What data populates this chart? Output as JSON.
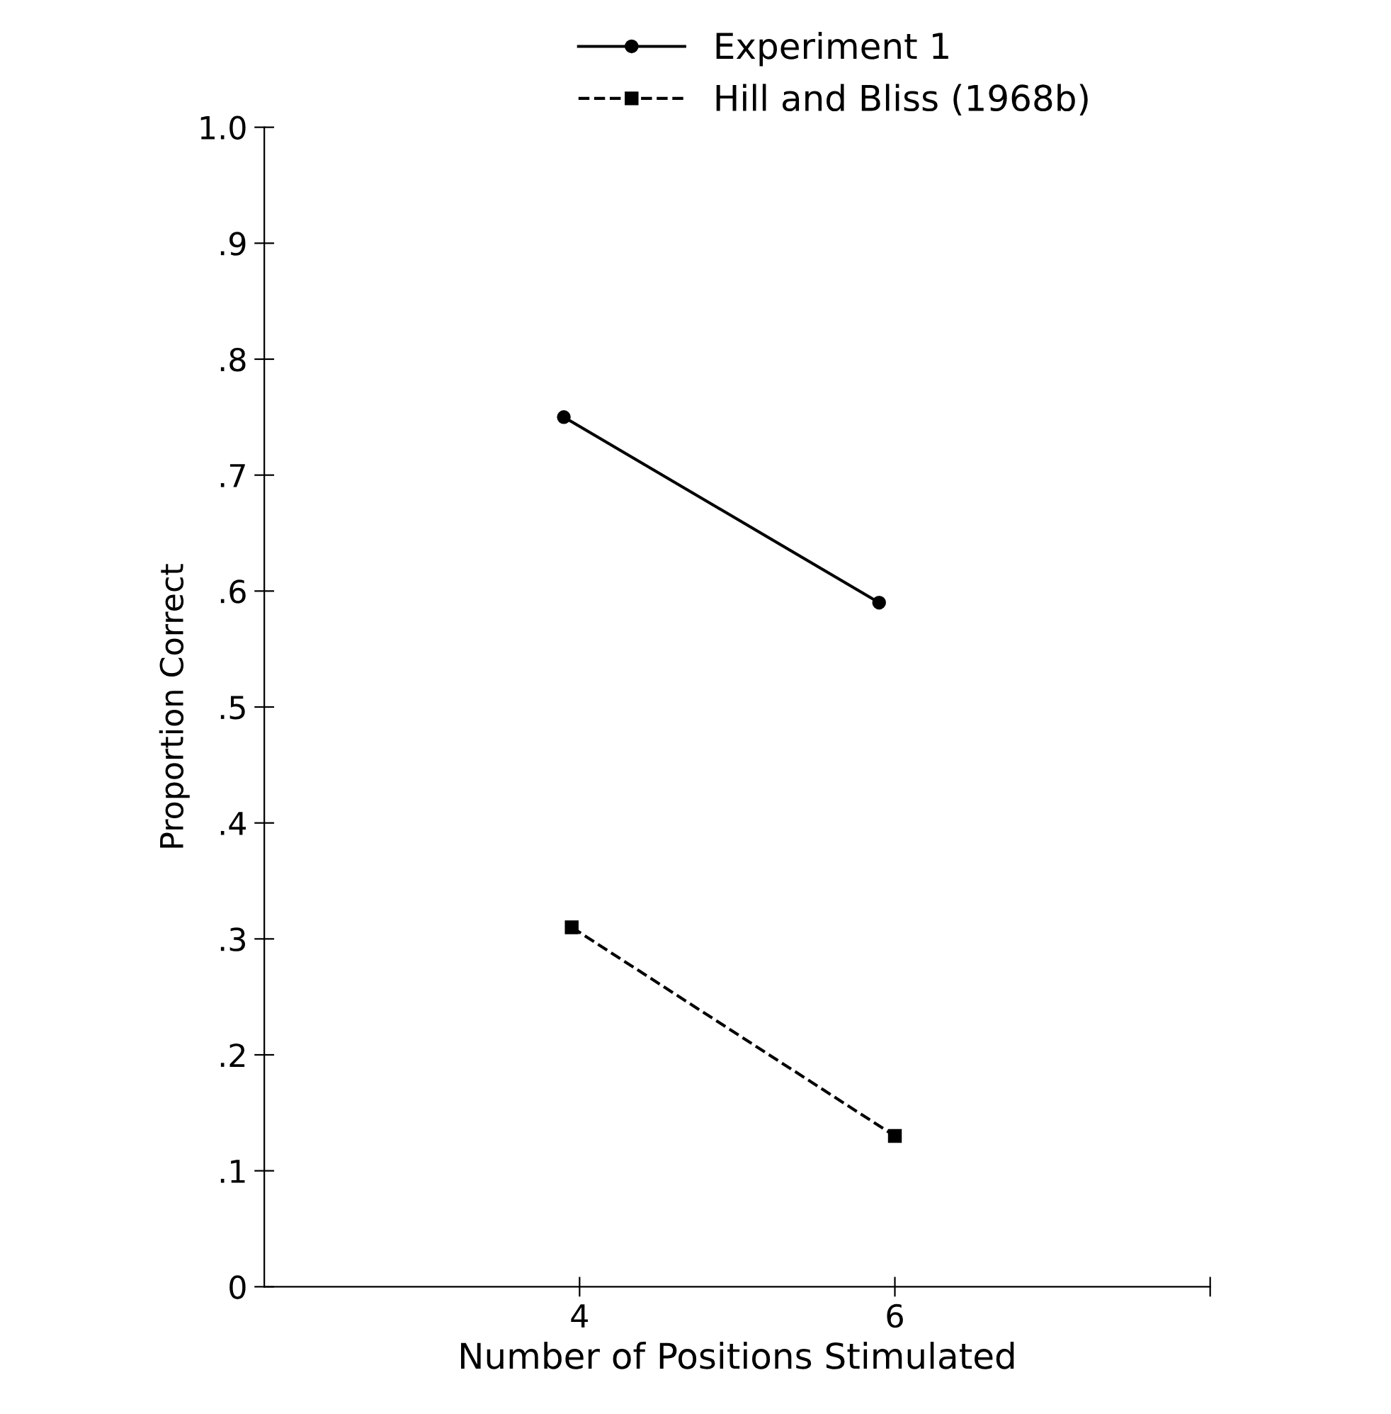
{
  "chart_data": {
    "type": "line",
    "xlabel": "Number of Positions Stimulated",
    "ylabel": "Proportion Correct",
    "xlim": [
      2,
      8
    ],
    "xticks": [
      4,
      6,
      {
        "value": 8,
        "label": null
      }
    ],
    "ylim": [
      0,
      1.0
    ],
    "yticks": [
      {
        "value": 0,
        "label": "0"
      },
      {
        "value": 0.1,
        "label": ".1"
      },
      {
        "value": 0.2,
        "label": ".2"
      },
      {
        "value": 0.3,
        "label": ".3"
      },
      {
        "value": 0.4,
        "label": ".4"
      },
      {
        "value": 0.5,
        "label": ".5"
      },
      {
        "value": 0.6,
        "label": ".6"
      },
      {
        "value": 0.7,
        "label": ".7"
      },
      {
        "value": 0.8,
        "label": ".8"
      },
      {
        "value": 0.9,
        "label": ".9"
      },
      {
        "value": 1.0,
        "label": "1.0"
      }
    ],
    "grid": false,
    "legend": "top",
    "series": [
      {
        "name": "Experiment 1",
        "color": "#000000",
        "x": [
          3.9,
          5.9
        ],
        "values": [
          0.75,
          0.59
        ],
        "marker": "circle",
        "line_style": "solid"
      },
      {
        "name": "Hill and Bliss (1968b)",
        "color": "#000000",
        "x": [
          3.95,
          6.0
        ],
        "values": [
          0.31,
          0.13
        ],
        "marker": "square",
        "line_style": "dashed"
      }
    ]
  }
}
